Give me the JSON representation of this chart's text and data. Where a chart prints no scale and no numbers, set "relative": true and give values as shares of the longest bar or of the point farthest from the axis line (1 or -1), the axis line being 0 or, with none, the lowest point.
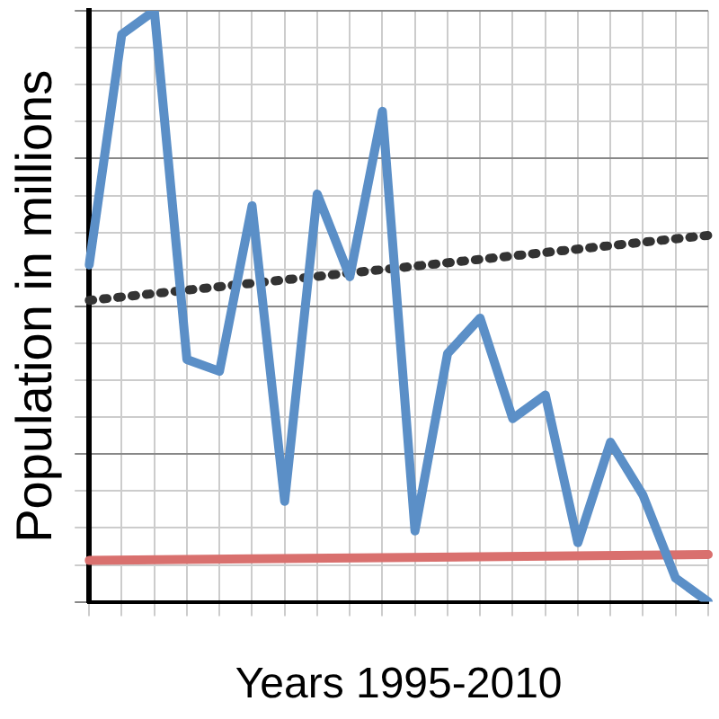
{
  "chart_data": {
    "type": "line",
    "relative": true,
    "xlabel": "Years 1995-2010",
    "ylabel": "Population in millions",
    "categories": [
      null,
      null,
      null,
      null,
      null,
      null,
      null,
      null,
      null,
      null,
      null,
      null,
      null,
      null,
      null,
      null,
      null,
      null,
      null,
      null
    ],
    "grid": true,
    "legend": false,
    "marker": "none",
    "series": [
      {
        "color": "#5b8fc7",
        "values": [
          0.57,
          0.96,
          1,
          0.41,
          0.39,
          0.67,
          0.17,
          0.69,
          0.55,
          0.83,
          0.12,
          0.42,
          0.48,
          0.31,
          0.35,
          0.1,
          0.27,
          0.18,
          0.04,
          0
        ]
      },
      {
        "color": "#333333",
        "line_style": "dotted",
        "values": [
          0.51,
          null,
          null,
          null,
          null,
          null,
          null,
          null,
          null,
          null,
          null,
          null,
          null,
          null,
          null,
          null,
          null,
          null,
          null,
          0.62
        ]
      },
      {
        "color": "#d9706e",
        "values": [
          0.07,
          null,
          null,
          null,
          null,
          null,
          null,
          null,
          null,
          null,
          null,
          null,
          null,
          null,
          null,
          null,
          null,
          null,
          null,
          0.08
        ]
      }
    ]
  }
}
